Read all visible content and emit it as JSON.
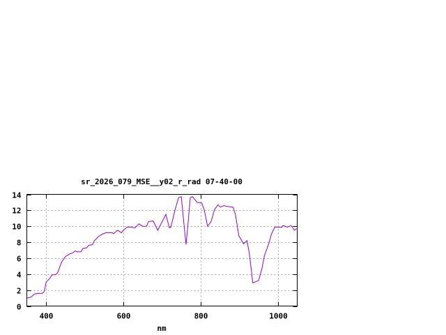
{
  "chart_data": {
    "type": "line",
    "title": "sr_2026_079_MSE__y02_r_rad 07-40-00",
    "xlabel": "nm",
    "ylabel": "",
    "xlim": [
      350,
      1050
    ],
    "ylim": [
      0,
      14
    ],
    "xticks": [
      400,
      600,
      800,
      1000
    ],
    "yticks": [
      0,
      2,
      4,
      6,
      8,
      10,
      12,
      14
    ],
    "grid": true,
    "line_color": "#9400d3",
    "series": [
      {
        "x": [
          350,
          360,
          370,
          380,
          390,
          395,
          400,
          410,
          415,
          425,
          430,
          440,
          450,
          460,
          470,
          475,
          480,
          490,
          495,
          505,
          510,
          520,
          525,
          535,
          545,
          555,
          570,
          575,
          585,
          595,
          600,
          610,
          620,
          630,
          640,
          650,
          660,
          665,
          677,
          689,
          710,
          719,
          723,
          734,
          743,
          750,
          756,
          762,
          767,
          773,
          779,
          791,
          803,
          809,
          818,
          827,
          836,
          845,
          851,
          860,
          866,
          884,
          890,
          899,
          911,
          920,
          926,
          935,
          950,
          959,
          965,
          977,
          983,
          992,
          1001,
          1010,
          1013,
          1025,
          1034,
          1043,
          1048
        ],
        "y": [
          1.0,
          1.1,
          1.5,
          1.6,
          1.6,
          1.8,
          3.0,
          3.5,
          3.9,
          3.95,
          4.2,
          5.5,
          6.2,
          6.5,
          6.7,
          6.9,
          6.8,
          6.8,
          7.2,
          7.3,
          7.6,
          7.7,
          8.2,
          8.7,
          9.0,
          9.2,
          9.2,
          9.1,
          9.5,
          9.2,
          9.5,
          9.9,
          9.9,
          9.8,
          10.3,
          10.0,
          10.0,
          10.6,
          10.67,
          9.5,
          11.5,
          9.8,
          9.9,
          12.1,
          13.6,
          13.7,
          10.7,
          7.7,
          10.1,
          13.6,
          13.7,
          13.0,
          12.9,
          12.1,
          10.0,
          10.6,
          12.1,
          12.7,
          12.4,
          12.6,
          12.5,
          12.4,
          11.5,
          8.8,
          7.8,
          8.2,
          6.6,
          2.9,
          3.2,
          4.8,
          6.3,
          7.9,
          9.0,
          9.9,
          9.9,
          9.85,
          10.1,
          9.9,
          10.1,
          9.5,
          9.7
        ]
      }
    ]
  }
}
